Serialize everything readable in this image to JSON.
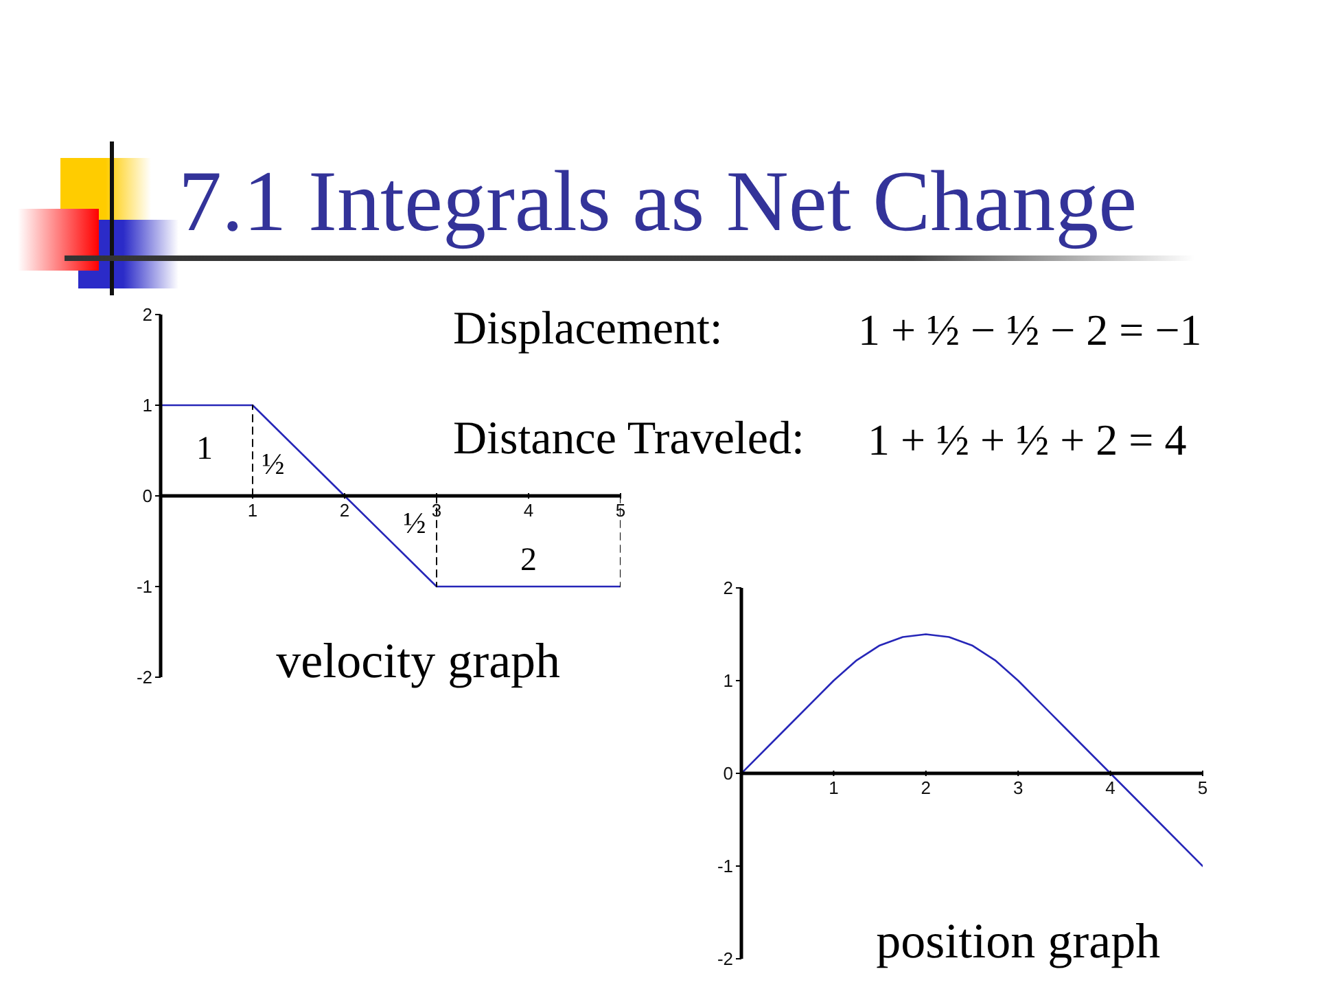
{
  "chart_data": [
    {
      "type": "line",
      "title": "7.1 Integrals as Net Change",
      "xlabel": "velocity graph",
      "xlim": [
        0,
        5
      ],
      "ylim": [
        -2,
        2
      ],
      "xticks": [
        1,
        2,
        3,
        4,
        5
      ],
      "yticks": [
        -2,
        -1,
        0,
        1,
        2
      ],
      "series": [
        {
          "color": "#2626b8",
          "x": [
            0,
            1,
            2,
            3,
            5
          ],
          "values": [
            1,
            1,
            0,
            -1,
            -1
          ]
        },
        {
          "color": "#000000",
          "x": [
            1,
            1
          ],
          "values": [
            0,
            1
          ],
          "line_style": "dashed"
        },
        {
          "color": "#000000",
          "x": [
            3,
            3
          ],
          "values": [
            0,
            -1
          ],
          "line_style": "dashed"
        },
        {
          "color": "#000000",
          "x": [
            5,
            5
          ],
          "values": [
            0,
            -1
          ],
          "line_style": "dashed"
        }
      ],
      "annotations": [
        "Displacement:",
        "1 + ½ − ½ − 2 = −1",
        "Distance Traveled:",
        "1 + ½ + ½ + 2 = 4",
        "1",
        "½",
        "½",
        "2"
      ]
    },
    {
      "type": "line",
      "xlabel": "position graph",
      "xlim": [
        0,
        5
      ],
      "ylim": [
        -2,
        2
      ],
      "xticks": [
        1,
        2,
        3,
        4,
        5
      ],
      "yticks": [
        -2,
        -1,
        0,
        1,
        2
      ],
      "color": "#2626b8",
      "x": [
        0,
        0.5,
        1,
        1.25,
        1.5,
        1.75,
        2,
        2.25,
        2.5,
        2.75,
        3,
        3.5,
        4,
        4.5,
        5
      ],
      "values": [
        0,
        0.5,
        1,
        1.22,
        1.38,
        1.47,
        1.5,
        1.47,
        1.38,
        1.22,
        1,
        0.5,
        0,
        -0.5,
        -1
      ]
    }
  ]
}
